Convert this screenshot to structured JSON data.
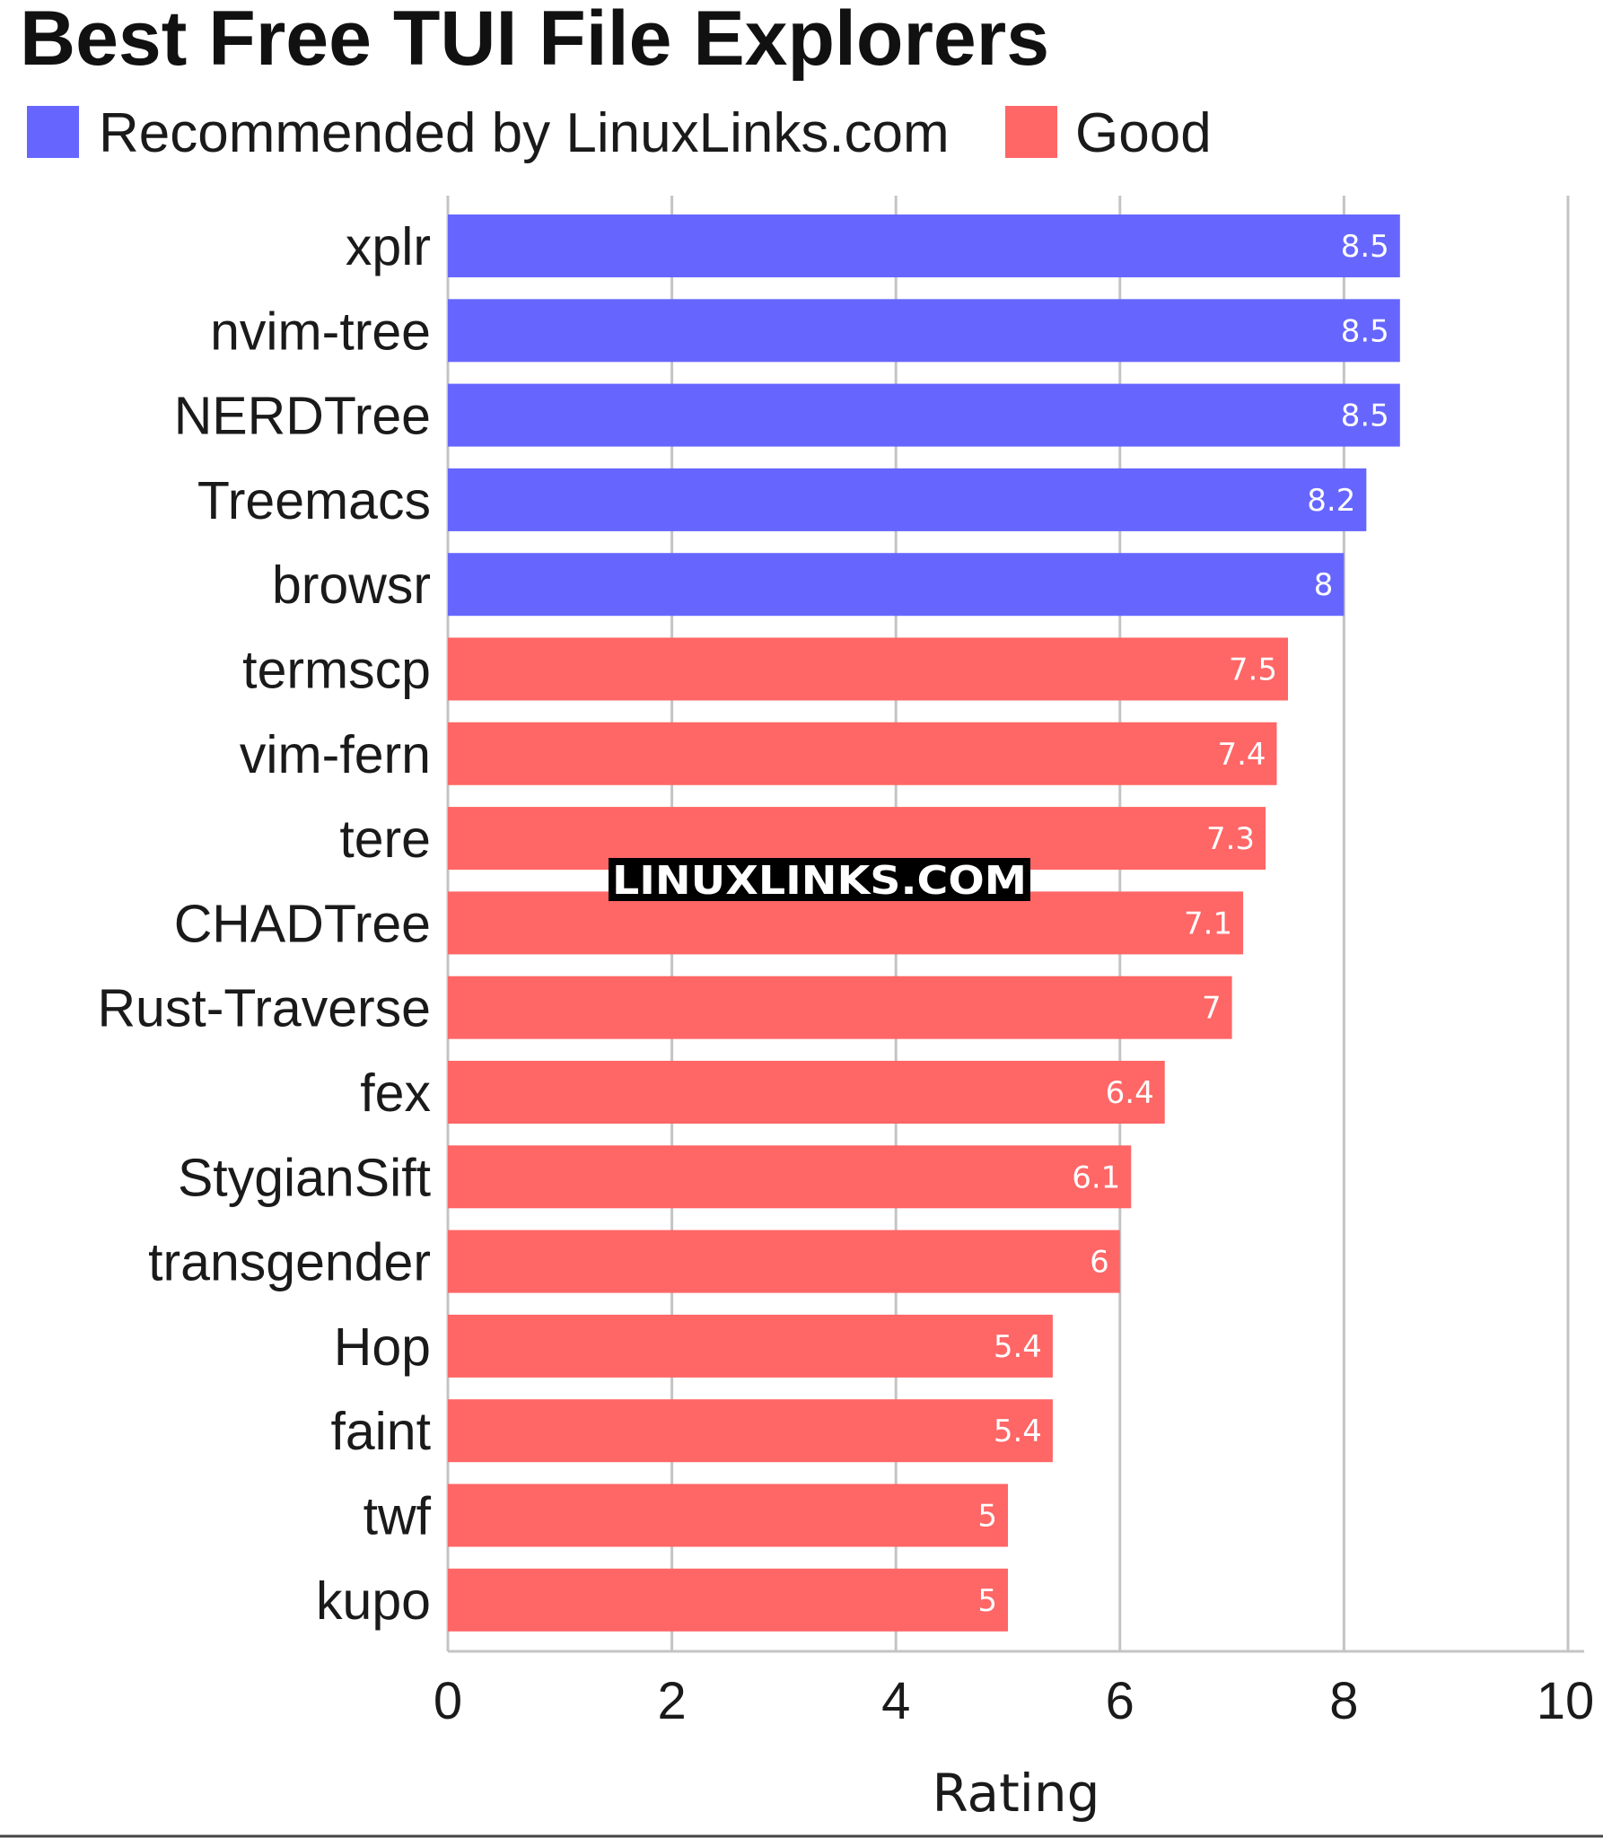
{
  "chart_data": {
    "type": "bar",
    "orientation": "horizontal",
    "title": "Best Free TUI File Explorers",
    "xlabel": "Rating",
    "ylabel": "",
    "xlim": [
      0,
      10
    ],
    "x_ticks": [
      0,
      2,
      4,
      6,
      8,
      10
    ],
    "grid": true,
    "legend_position": "top-left",
    "legend": [
      {
        "name": "Recommended by LinuxLinks.com",
        "color": "#6666ff"
      },
      {
        "name": "Good",
        "color": "#ff6666"
      }
    ],
    "categories": [
      "xplr",
      "nvim-tree",
      "NERDTree",
      "Treemacs",
      "browsr",
      "termscp",
      "vim-fern",
      "tere",
      "CHADTree",
      "Rust-Traverse",
      "fex",
      "StygianSift",
      "transgender",
      "Hop",
      "faint",
      "twf",
      "kupo"
    ],
    "values": [
      8.5,
      8.5,
      8.5,
      8.2,
      8,
      7.5,
      7.4,
      7.3,
      7.1,
      7,
      6.4,
      6.1,
      6,
      5.4,
      5.4,
      5,
      5
    ],
    "groups": [
      "Recommended by LinuxLinks.com",
      "Recommended by LinuxLinks.com",
      "Recommended by LinuxLinks.com",
      "Recommended by LinuxLinks.com",
      "Recommended by LinuxLinks.com",
      "Good",
      "Good",
      "Good",
      "Good",
      "Good",
      "Good",
      "Good",
      "Good",
      "Good",
      "Good",
      "Good",
      "Good"
    ],
    "value_labels": [
      "8.5",
      "8.5",
      "8.5",
      "8.2",
      "8",
      "7.5",
      "7.4",
      "7.3",
      "7.1",
      "7",
      "6.4",
      "6.1",
      "6",
      "5.4",
      "5.4",
      "5",
      "5"
    ]
  },
  "watermark": "LINUXLINKS.COM",
  "colors": {
    "recommended": "#6666ff",
    "good": "#ff6666",
    "grid": "#c4c4c4",
    "text": "#1a1a1a"
  }
}
